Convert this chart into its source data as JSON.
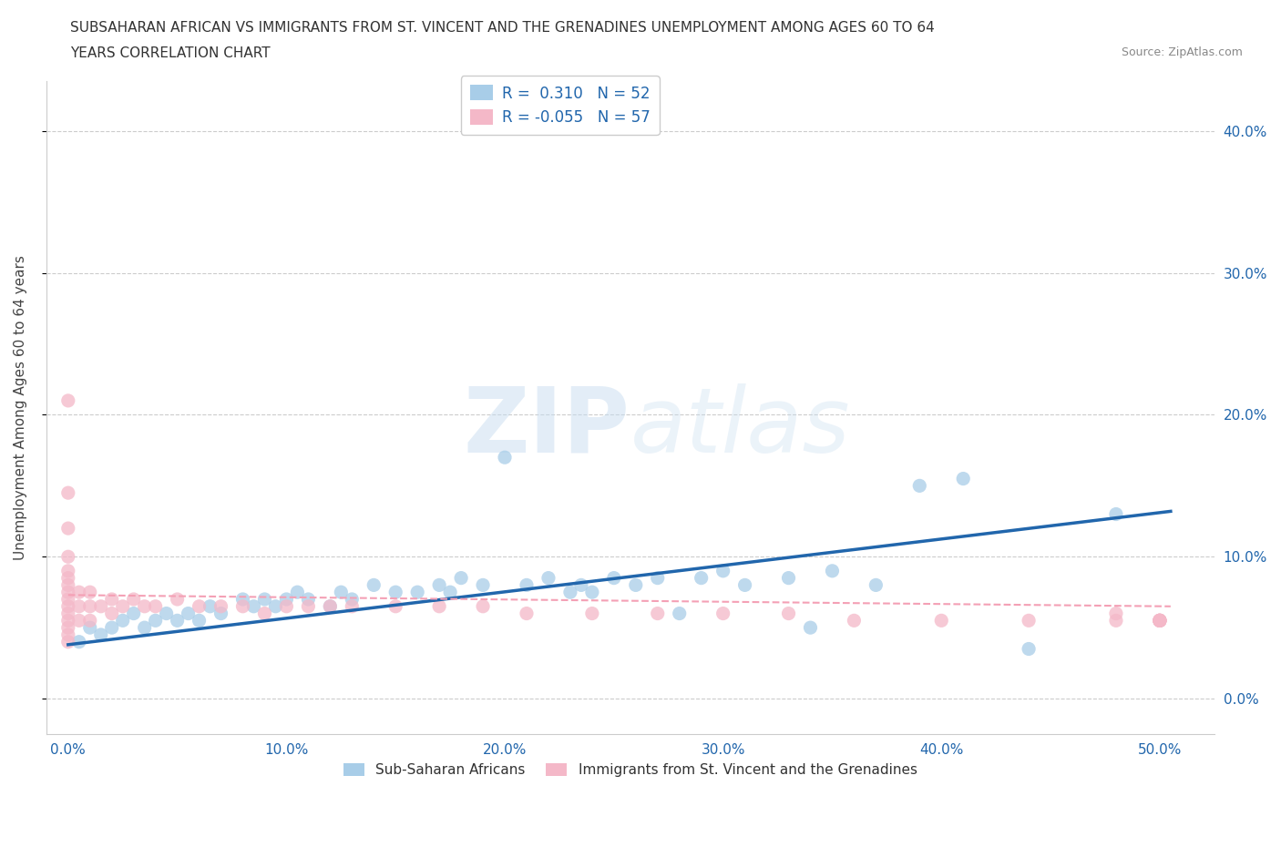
{
  "title_line1": "SUBSAHARAN AFRICAN VS IMMIGRANTS FROM ST. VINCENT AND THE GRENADINES UNEMPLOYMENT AMONG AGES 60 TO 64",
  "title_line2": "YEARS CORRELATION CHART",
  "source_text": "Source: ZipAtlas.com",
  "ylabel": "Unemployment Among Ages 60 to 64 years",
  "xlabel_ticks": [
    "0.0%",
    "10.0%",
    "20.0%",
    "30.0%",
    "40.0%",
    "50.0%"
  ],
  "xlabel_vals": [
    0.0,
    0.1,
    0.2,
    0.3,
    0.4,
    0.5
  ],
  "ylabel_ticks": [
    "0.0%",
    "10.0%",
    "20.0%",
    "30.0%",
    "40.0%"
  ],
  "ylabel_vals": [
    0.0,
    0.1,
    0.2,
    0.3,
    0.4
  ],
  "xlim": [
    -0.01,
    0.525
  ],
  "ylim": [
    -0.025,
    0.435
  ],
  "blue_color": "#a8cde8",
  "pink_color": "#f4b8c8",
  "blue_line_color": "#2166ac",
  "pink_line_color": "#f4b8c8",
  "watermark_zip": "ZIP",
  "watermark_atlas": "atlas",
  "legend_R1": "0.310",
  "legend_N1": "52",
  "legend_R2": "-0.055",
  "legend_N2": "57",
  "legend_label1": "Sub-Saharan Africans",
  "legend_label2": "Immigrants from St. Vincent and the Grenadines",
  "blue_x": [
    0.005,
    0.01,
    0.015,
    0.02,
    0.025,
    0.03,
    0.035,
    0.04,
    0.045,
    0.05,
    0.055,
    0.06,
    0.065,
    0.07,
    0.08,
    0.085,
    0.09,
    0.095,
    0.1,
    0.105,
    0.11,
    0.12,
    0.125,
    0.13,
    0.14,
    0.15,
    0.16,
    0.17,
    0.175,
    0.18,
    0.19,
    0.2,
    0.21,
    0.22,
    0.23,
    0.235,
    0.24,
    0.25,
    0.26,
    0.27,
    0.28,
    0.29,
    0.3,
    0.31,
    0.33,
    0.34,
    0.35,
    0.37,
    0.39,
    0.41,
    0.44,
    0.48
  ],
  "blue_y": [
    0.04,
    0.05,
    0.045,
    0.05,
    0.055,
    0.06,
    0.05,
    0.055,
    0.06,
    0.055,
    0.06,
    0.055,
    0.065,
    0.06,
    0.07,
    0.065,
    0.07,
    0.065,
    0.07,
    0.075,
    0.07,
    0.065,
    0.075,
    0.07,
    0.08,
    0.075,
    0.075,
    0.08,
    0.075,
    0.085,
    0.08,
    0.17,
    0.08,
    0.085,
    0.075,
    0.08,
    0.075,
    0.085,
    0.08,
    0.085,
    0.06,
    0.085,
    0.09,
    0.08,
    0.085,
    0.05,
    0.09,
    0.08,
    0.15,
    0.155,
    0.035,
    0.13
  ],
  "pink_x": [
    0.0,
    0.0,
    0.0,
    0.0,
    0.0,
    0.0,
    0.0,
    0.0,
    0.0,
    0.0,
    0.0,
    0.0,
    0.0,
    0.0,
    0.0,
    0.005,
    0.005,
    0.005,
    0.01,
    0.01,
    0.01,
    0.015,
    0.02,
    0.02,
    0.025,
    0.03,
    0.035,
    0.04,
    0.05,
    0.06,
    0.07,
    0.08,
    0.09,
    0.1,
    0.11,
    0.12,
    0.13,
    0.15,
    0.17,
    0.19,
    0.21,
    0.24,
    0.27,
    0.3,
    0.33,
    0.36,
    0.4,
    0.44,
    0.48,
    0.48,
    0.5,
    0.5,
    0.5,
    0.5,
    0.5,
    0.5,
    0.5
  ],
  "pink_y": [
    0.04,
    0.045,
    0.05,
    0.055,
    0.06,
    0.065,
    0.07,
    0.075,
    0.08,
    0.085,
    0.09,
    0.1,
    0.12,
    0.145,
    0.21,
    0.055,
    0.065,
    0.075,
    0.055,
    0.065,
    0.075,
    0.065,
    0.06,
    0.07,
    0.065,
    0.07,
    0.065,
    0.065,
    0.07,
    0.065,
    0.065,
    0.065,
    0.06,
    0.065,
    0.065,
    0.065,
    0.065,
    0.065,
    0.065,
    0.065,
    0.06,
    0.06,
    0.06,
    0.06,
    0.06,
    0.055,
    0.055,
    0.055,
    0.055,
    0.06,
    0.055,
    0.055,
    0.055,
    0.055,
    0.055,
    0.055,
    0.055
  ],
  "grid_color": "#cccccc",
  "background_color": "#ffffff",
  "title_fontsize": 11,
  "axis_label_fontsize": 11,
  "tick_fontsize": 11,
  "blue_trend_x0": 0.0,
  "blue_trend_y0": 0.038,
  "blue_trend_x1": 0.505,
  "blue_trend_y1": 0.132,
  "pink_trend_x0": 0.0,
  "pink_trend_y0": 0.073,
  "pink_trend_x1": 0.505,
  "pink_trend_y1": 0.065
}
